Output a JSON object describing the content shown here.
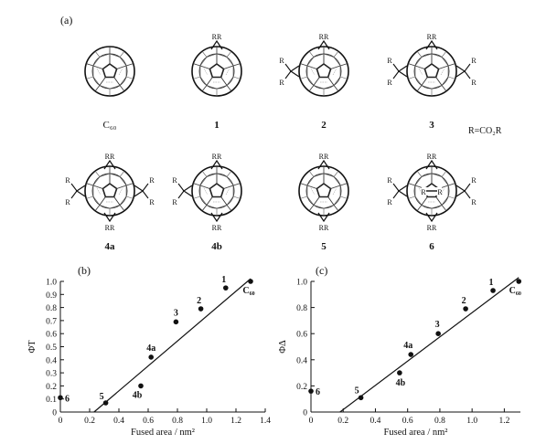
{
  "panel_a": {
    "label": "(a)",
    "legend": "R=CO₂R",
    "r_label": "R",
    "rr_label": "RR",
    "molecules": [
      {
        "id": "c60",
        "caption": "C₆₀",
        "bold": false,
        "top": 0,
        "side": 0,
        "bottom": 0
      },
      {
        "id": "m1",
        "caption": "1",
        "bold": true,
        "top": 1,
        "side": 0,
        "bottom": 0
      },
      {
        "id": "m2",
        "caption": "2",
        "bold": true,
        "top": 1,
        "side": 1,
        "bottom": 0
      },
      {
        "id": "m3",
        "caption": "3",
        "bold": true,
        "top": 1,
        "side": 2,
        "bottom": 0
      },
      {
        "id": "m4a",
        "caption": "4a",
        "bold": true,
        "top": 1,
        "side": 2,
        "bottom": 1
      },
      {
        "id": "m4b",
        "caption": "4b",
        "bold": true,
        "top": 1,
        "side": 1,
        "bottom": 1
      },
      {
        "id": "m5",
        "caption": "5",
        "bold": true,
        "top": 1,
        "side": 0,
        "bottom": 1
      },
      {
        "id": "m6",
        "caption": "6",
        "bold": true,
        "top": 1,
        "side": 2,
        "bottom": 1
      }
    ]
  },
  "chart_data": [
    {
      "type": "scatter",
      "panel_label": "(b)",
      "title": "",
      "xlabel": "Fused area / nm²",
      "ylabel": "ΦT",
      "xlim": [
        0,
        1.4
      ],
      "ylim": [
        0,
        1.0
      ],
      "xticks": [
        "0",
        "0.2",
        "0.4",
        "0.6",
        "0.8",
        "1.0",
        "1.2",
        "1.4"
      ],
      "yticks": [
        "0",
        "0.1",
        "0.2",
        "0.3",
        "0.4",
        "0.5",
        "0.6",
        "0.7",
        "0.8",
        "0.9",
        "1.0"
      ],
      "grid": false,
      "points": [
        {
          "label": "6",
          "x": 0.0,
          "y": 0.11
        },
        {
          "label": "5",
          "x": 0.31,
          "y": 0.07
        },
        {
          "label": "4b",
          "x": 0.55,
          "y": 0.2
        },
        {
          "label": "4a",
          "x": 0.62,
          "y": 0.42
        },
        {
          "label": "3",
          "x": 0.79,
          "y": 0.69
        },
        {
          "label": "2",
          "x": 0.96,
          "y": 0.79
        },
        {
          "label": "1",
          "x": 1.13,
          "y": 0.95
        },
        {
          "label": "C₆₀",
          "x": 1.3,
          "y": 1.0
        }
      ],
      "fit_line": {
        "x": [
          0.23,
          1.3
        ],
        "y": [
          0.0,
          1.02
        ]
      }
    },
    {
      "type": "scatter",
      "panel_label": "(c)",
      "title": "",
      "xlabel": "Fused area / nm²",
      "ylabel": "ΦΔ",
      "xlim": [
        0,
        1.3
      ],
      "ylim": [
        0,
        1.0
      ],
      "xticks": [
        "0",
        "0.2",
        "0.4",
        "0.6",
        "0.8",
        "1.0",
        "1.2"
      ],
      "yticks": [
        "0",
        "0.2",
        "0.4",
        "0.6",
        "0.8",
        "1.0"
      ],
      "grid": false,
      "points": [
        {
          "label": "6",
          "x": 0.0,
          "y": 0.16
        },
        {
          "label": "5",
          "x": 0.31,
          "y": 0.11
        },
        {
          "label": "4b",
          "x": 0.55,
          "y": 0.3
        },
        {
          "label": "4a",
          "x": 0.62,
          "y": 0.44
        },
        {
          "label": "3",
          "x": 0.79,
          "y": 0.6
        },
        {
          "label": "2",
          "x": 0.96,
          "y": 0.79
        },
        {
          "label": "1",
          "x": 1.13,
          "y": 0.93
        },
        {
          "label": "C₆₀",
          "x": 1.29,
          "y": 1.0
        }
      ],
      "fit_line": {
        "x": [
          0.18,
          1.29
        ],
        "y": [
          0.0,
          1.03
        ]
      }
    }
  ]
}
